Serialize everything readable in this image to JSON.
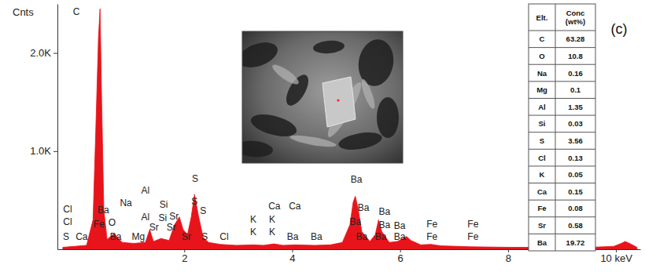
{
  "chart_data": {
    "type": "area",
    "color": "#e8141b",
    "y_label": "Cnts",
    "panel_label": "(c)",
    "grid": false,
    "xlim": [
      -0.35,
      10.45
    ],
    "xticks": [
      2,
      4,
      6,
      8,
      {
        "value": 10,
        "label": "10 keV"
      }
    ],
    "ylim": [
      0,
      2500
    ],
    "yticks": [
      {
        "value": 1000,
        "label": "1.0K"
      },
      {
        "value": 2000,
        "label": "2.0K"
      }
    ],
    "x": [
      -0.25,
      0.19,
      0.31,
      0.36,
      0.41,
      0.44,
      0.47,
      0.51,
      0.57,
      0.7,
      0.85,
      1.06,
      1.28,
      1.36,
      1.43,
      1.57,
      1.72,
      1.82,
      1.91,
      1.98,
      2.06,
      2.13,
      2.19,
      2.26,
      2.35,
      2.45,
      2.67,
      2.96,
      3.28,
      3.47,
      3.66,
      3.83,
      4.05,
      4.42,
      4.71,
      4.93,
      5.07,
      5.13,
      5.17,
      5.22,
      5.29,
      5.44,
      5.54,
      5.6,
      5.66,
      5.8,
      5.95,
      6.05,
      6.12,
      6.2,
      6.38,
      6.57,
      6.75,
      7.33,
      8.06,
      8.79,
      9.52,
      9.96,
      10.1,
      10.17,
      10.25,
      10.39
    ],
    "values": [
      20,
      40,
      300,
      1200,
      2150,
      2450,
      1500,
      400,
      100,
      160,
      70,
      60,
      70,
      200,
      80,
      110,
      90,
      250,
      330,
      200,
      150,
      330,
      560,
      350,
      120,
      70,
      50,
      40,
      45,
      40,
      55,
      40,
      45,
      40,
      45,
      70,
      250,
      480,
      540,
      420,
      180,
      80,
      150,
      300,
      180,
      70,
      80,
      110,
      130,
      90,
      45,
      50,
      35,
      25,
      20,
      20,
      20,
      30,
      60,
      80,
      60,
      20
    ],
    "annotations": [
      {
        "text": "C",
        "x": 0.0,
        "y": 2420
      },
      {
        "text": "Cl",
        "x": -0.16,
        "y": 408
      },
      {
        "text": "Cl",
        "x": -0.16,
        "y": 280
      },
      {
        "text": "S",
        "x": -0.19,
        "y": 128
      },
      {
        "text": "Ca",
        "x": 0.1,
        "y": 128
      },
      {
        "text": "Fe",
        "x": 0.42,
        "y": 256
      },
      {
        "text": "O",
        "x": 0.66,
        "y": 272
      },
      {
        "text": "Ba",
        "x": 0.5,
        "y": 400
      },
      {
        "text": "Na",
        "x": 0.92,
        "y": 472
      },
      {
        "text": "Ba",
        "x": 0.73,
        "y": 128
      },
      {
        "text": "Mg",
        "x": 1.15,
        "y": 128
      },
      {
        "text": "Al",
        "x": 1.28,
        "y": 600
      },
      {
        "text": "Al",
        "x": 1.28,
        "y": 328
      },
      {
        "text": "Si",
        "x": 1.62,
        "y": 456
      },
      {
        "text": "Si",
        "x": 1.6,
        "y": 320
      },
      {
        "text": "Sr",
        "x": 1.81,
        "y": 336
      },
      {
        "text": "Sr",
        "x": 1.44,
        "y": 224
      },
      {
        "text": "Sr",
        "x": 1.76,
        "y": 224
      },
      {
        "text": "Sr",
        "x": 2.04,
        "y": 128
      },
      {
        "text": "S",
        "x": 2.2,
        "y": 720
      },
      {
        "text": "S",
        "x": 2.19,
        "y": 488
      },
      {
        "text": "S",
        "x": 2.35,
        "y": 392
      },
      {
        "text": "S",
        "x": 2.38,
        "y": 128
      },
      {
        "text": "Cl",
        "x": 2.74,
        "y": 128
      },
      {
        "text": "K",
        "x": 3.28,
        "y": 304
      },
      {
        "text": "K",
        "x": 3.28,
        "y": 176
      },
      {
        "text": "K",
        "x": 3.63,
        "y": 304
      },
      {
        "text": "K",
        "x": 3.63,
        "y": 176
      },
      {
        "text": "Ca",
        "x": 3.67,
        "y": 440
      },
      {
        "text": "Ca",
        "x": 4.05,
        "y": 440
      },
      {
        "text": "Ba",
        "x": 4.01,
        "y": 128
      },
      {
        "text": "Ba",
        "x": 4.45,
        "y": 128
      },
      {
        "text": "Ba",
        "x": 5.19,
        "y": 712
      },
      {
        "text": "Ba",
        "x": 5.32,
        "y": 424
      },
      {
        "text": "Ba",
        "x": 5.71,
        "y": 384
      },
      {
        "text": "Ba",
        "x": 5.17,
        "y": 280
      },
      {
        "text": "Ba",
        "x": 5.71,
        "y": 248
      },
      {
        "text": "Ba",
        "x": 5.29,
        "y": 128
      },
      {
        "text": "Ba",
        "x": 5.64,
        "y": 128
      },
      {
        "text": "Ba",
        "x": 5.99,
        "y": 240
      },
      {
        "text": "Ba",
        "x": 5.99,
        "y": 128
      },
      {
        "text": "Fe",
        "x": 6.59,
        "y": 256
      },
      {
        "text": "Fe",
        "x": 6.59,
        "y": 128
      },
      {
        "text": "Fe",
        "x": 7.35,
        "y": 256
      },
      {
        "text": "Fe",
        "x": 7.35,
        "y": 128
      }
    ],
    "table": {
      "columns": [
        [
          "Elt."
        ],
        [
          "Conc",
          "(wt%)"
        ]
      ],
      "rows": [
        [
          "C",
          "63.28"
        ],
        [
          "O",
          "10.8"
        ],
        [
          "Na",
          "0.16"
        ],
        [
          "Mg",
          "0.1"
        ],
        [
          "Al",
          "1.35"
        ],
        [
          "Si",
          "0.03"
        ],
        [
          "S",
          "3.56"
        ],
        [
          "Cl",
          "0.13"
        ],
        [
          "K",
          "0.05"
        ],
        [
          "Ca",
          "0.15"
        ],
        [
          "Fe",
          "0.08"
        ],
        [
          "Sr",
          "0.58"
        ],
        [
          "Ba",
          "19.72"
        ]
      ]
    }
  }
}
